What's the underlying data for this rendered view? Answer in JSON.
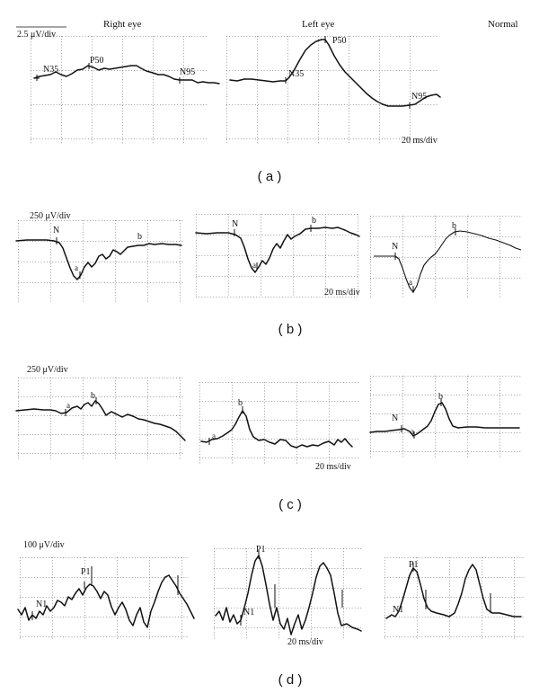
{
  "header": {
    "right_eye": "Right eye",
    "left_eye": "Left eye",
    "normal": "Normal"
  },
  "panel_a": {
    "letter": "( a )",
    "scale": "2.5 μV/div",
    "time_scale": "20 ms/div",
    "right": {
      "n35": "N35",
      "p50": "P50",
      "n95": "N95"
    },
    "left": {
      "n35": "N35",
      "p50": "P50",
      "n95": "N95"
    }
  },
  "panel_b": {
    "letter": "( b )",
    "scale": "250 μV/div",
    "time_scale": "20 ms/div",
    "right": {
      "n": "N",
      "a": "a",
      "b": "b"
    },
    "left": {
      "n": "N",
      "a": "a",
      "b": "b"
    },
    "normal": {
      "n": "N",
      "a": "a",
      "b": "b"
    }
  },
  "panel_c": {
    "letter": "( c )",
    "scale": "250 μV/div",
    "time_scale": "20 ms/div",
    "right": {
      "a": "a",
      "b": "b"
    },
    "left": {
      "a": "a",
      "b": "b"
    },
    "normal": {
      "n": "N",
      "a": "a",
      "b": "b"
    }
  },
  "panel_d": {
    "letter": "( d )",
    "scale": "100 μV/div",
    "time_scale": "20 ms/div",
    "right": {
      "n1": "N1",
      "p1": "P1"
    },
    "left": {
      "n1": "N1",
      "p1": "P1"
    },
    "normal": {
      "n1": "N1",
      "p1": "P1"
    }
  }
}
